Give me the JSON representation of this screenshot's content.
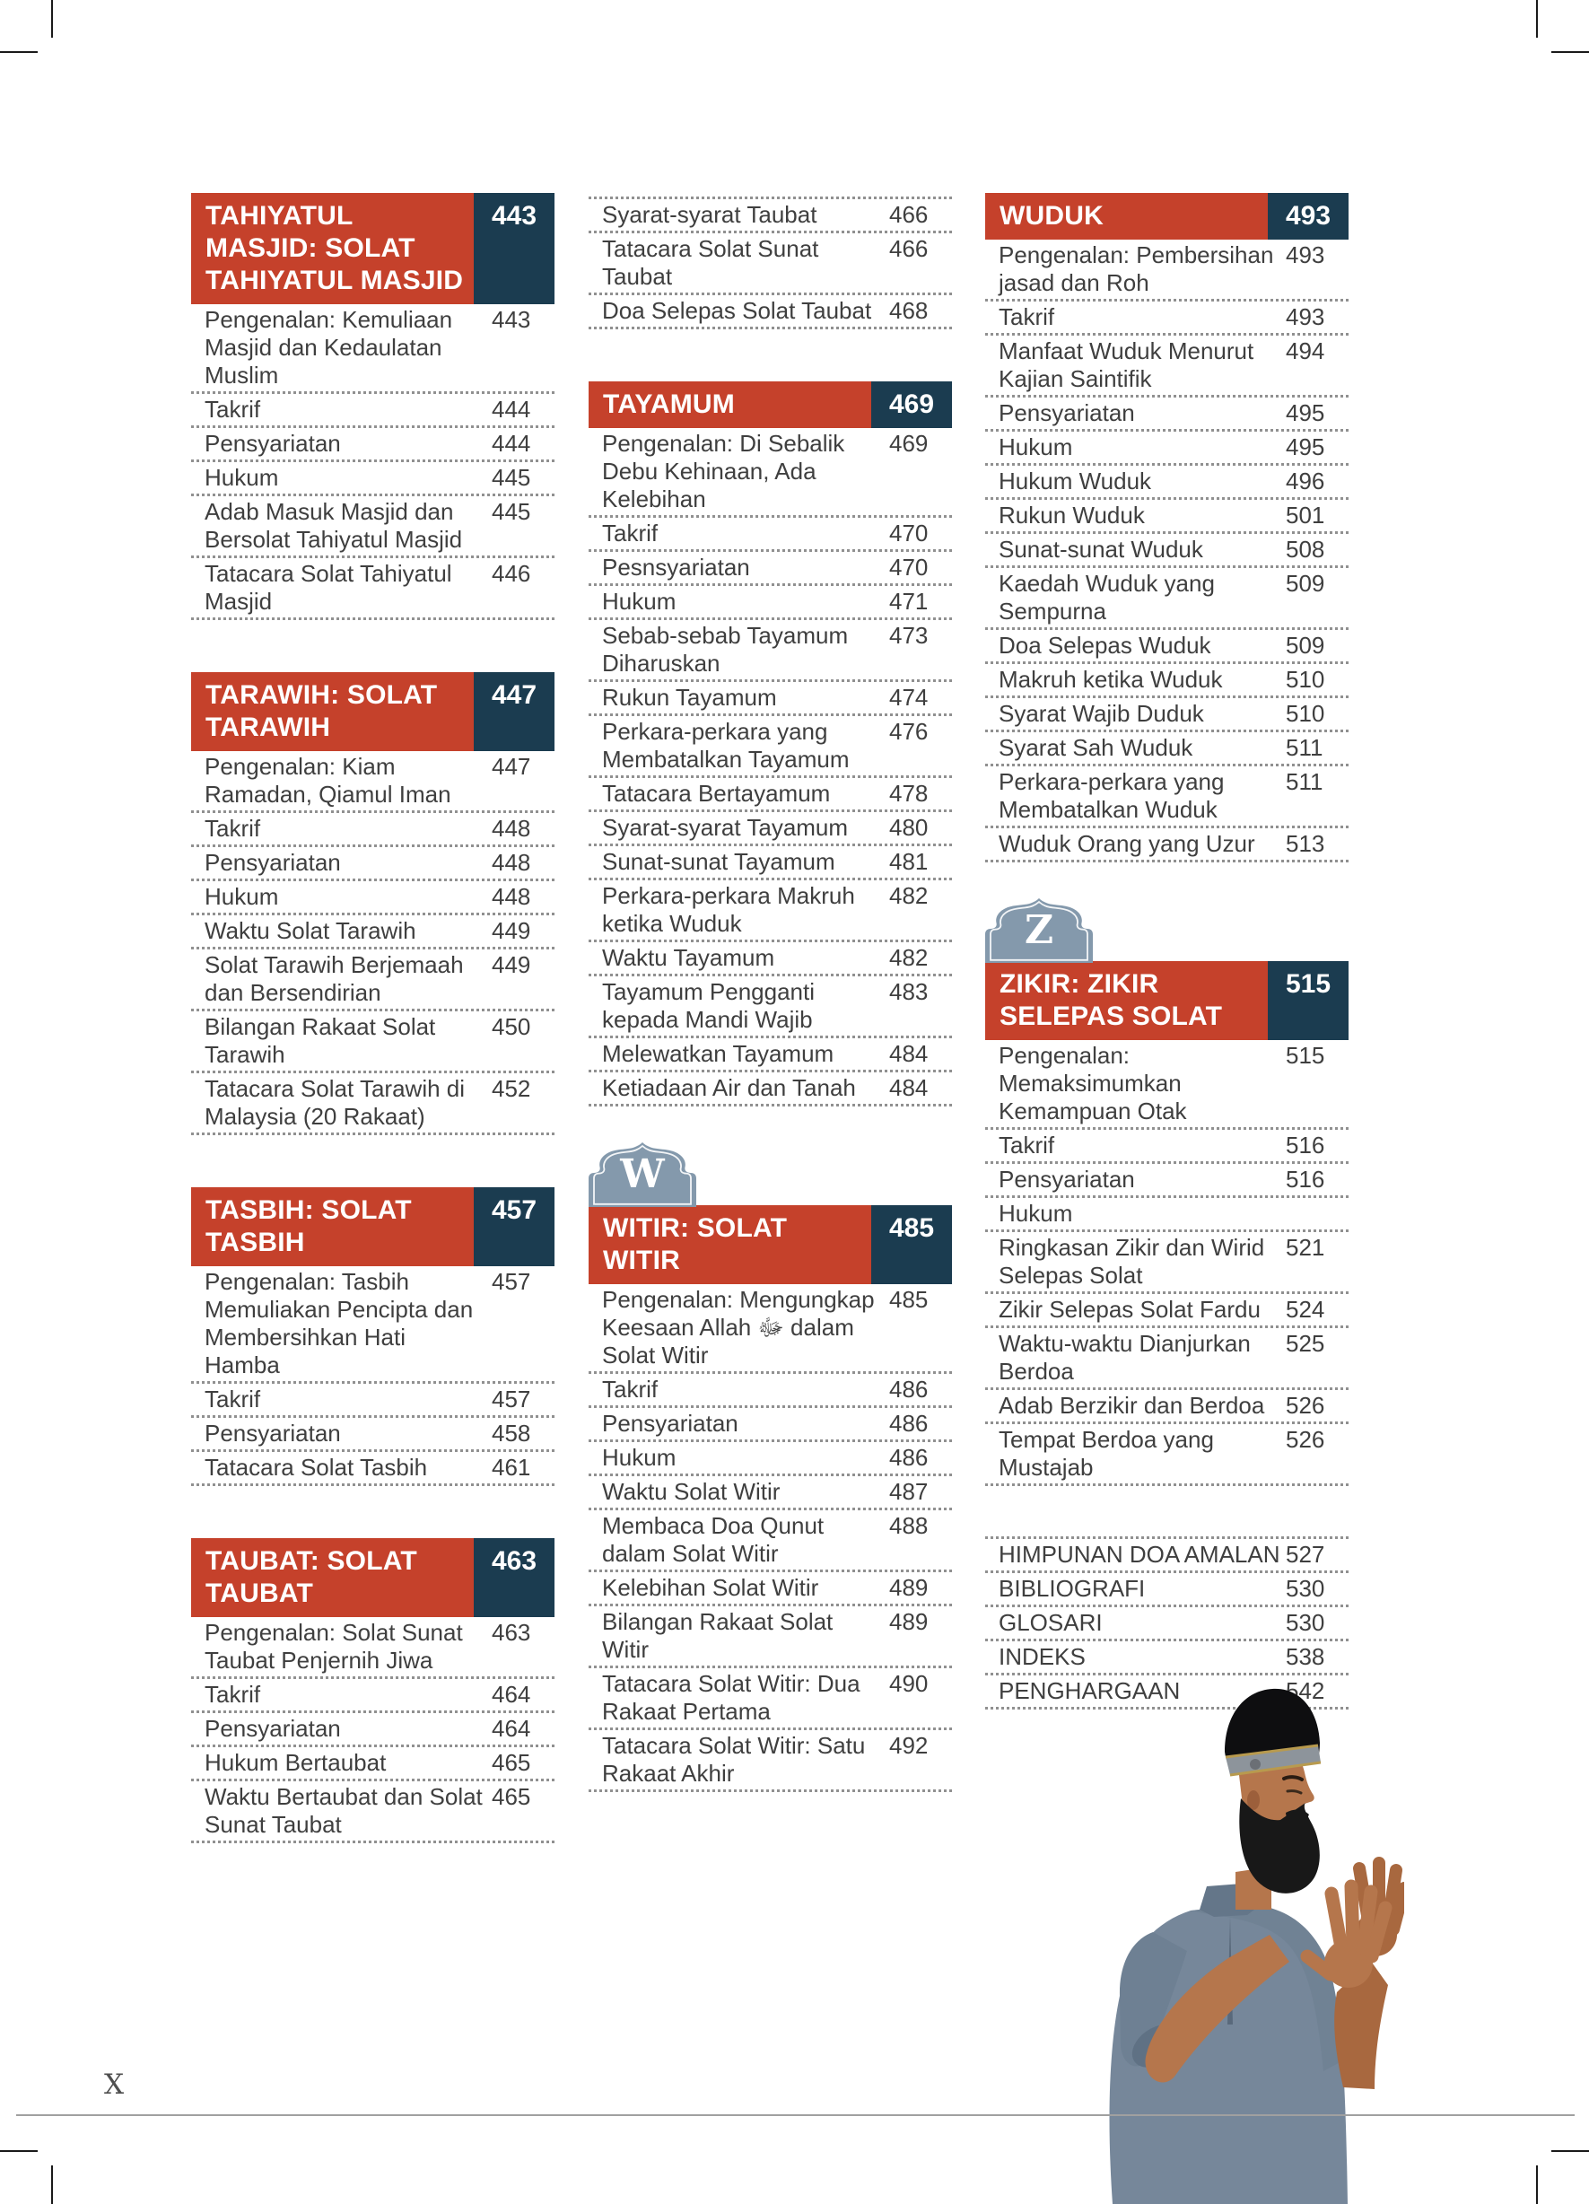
{
  "meta": {
    "folio": "X"
  },
  "colors": {
    "accent_red": "#c5412b",
    "page_number_navy": "#1b3c50",
    "badge_blue": "#8499ac",
    "body_text": "#3f3f3f",
    "dotted_line": "#909090"
  },
  "photo": {
    "description": "Man wearing black kufi cap with decorative band, beard, grey-blue shirt, hands raised in prayer (dua)"
  },
  "columns": [
    {
      "blocks": [
        {
          "kind": "section",
          "title": "TAHIYATUL MASJID: SOLAT TAHIYATUL MASJID",
          "page": "443",
          "items": [
            {
              "t": "Pengenalan: Kemuliaan Masjid dan Kedaulatan Muslim",
              "p": "443"
            },
            {
              "t": "Takrif",
              "p": "444"
            },
            {
              "t": "Pensyariatan",
              "p": "444"
            },
            {
              "t": "Hukum",
              "p": "445"
            },
            {
              "t": "Adab Masuk Masjid dan Bersolat Tahiyatul Masjid",
              "p": "445"
            },
            {
              "t": "Tatacara Solat Tahiyatul Masjid",
              "p": "446"
            }
          ]
        },
        {
          "kind": "section",
          "title": "TARAWIH: SOLAT TARAWIH",
          "page": "447",
          "items": [
            {
              "t": "Pengenalan: Kiam Ramadan, Qiamul Iman",
              "p": "447"
            },
            {
              "t": "Takrif",
              "p": "448"
            },
            {
              "t": "Pensyariatan",
              "p": "448"
            },
            {
              "t": "Hukum",
              "p": "448"
            },
            {
              "t": "Waktu Solat Tarawih",
              "p": "449"
            },
            {
              "t": "Solat Tarawih Berjemaah dan Bersendirian",
              "p": "449"
            },
            {
              "t": "Bilangan Rakaat Solat Tarawih",
              "p": "450"
            },
            {
              "t": "Tatacara Solat Tarawih di Malaysia (20 Rakaat)",
              "p": "452"
            }
          ]
        },
        {
          "kind": "section",
          "title": "TASBIH: SOLAT TASBIH",
          "page": "457",
          "items": [
            {
              "t": "Pengenalan: Tasbih Memuliakan Pencipta dan Membersihkan Hati Hamba",
              "p": "457"
            },
            {
              "t": "Takrif",
              "p": "457"
            },
            {
              "t": "Pensyariatan",
              "p": "458"
            },
            {
              "t": "Tatacara Solat Tasbih",
              "p": "461"
            }
          ]
        },
        {
          "kind": "section",
          "title": "TAUBAT: SOLAT TAUBAT",
          "page": "463",
          "items": [
            {
              "t": "Pengenalan: Solat Sunat Taubat Penjernih Jiwa",
              "p": "463"
            },
            {
              "t": "Takrif",
              "p": "464"
            },
            {
              "t": "Pensyariatan",
              "p": "464"
            },
            {
              "t": "Hukum Bertaubat",
              "p": "465"
            },
            {
              "t": "Waktu Bertaubat dan Solat Sunat Taubat",
              "p": "465"
            }
          ]
        }
      ]
    },
    {
      "blocks": [
        {
          "kind": "continuation",
          "items": [
            {
              "t": "Syarat-syarat Taubat",
              "p": "466"
            },
            {
              "t": "Tatacara Solat Sunat Taubat",
              "p": "466"
            },
            {
              "t": "Doa Selepas Solat Taubat",
              "p": "468"
            }
          ]
        },
        {
          "kind": "section",
          "title": "TAYAMUM",
          "page": "469",
          "items": [
            {
              "t": "Pengenalan: Di Sebalik Debu Kehinaan, Ada Kelebihan",
              "p": "469"
            },
            {
              "t": "Takrif",
              "p": "470"
            },
            {
              "t": "Pesnsyariatan",
              "p": "470"
            },
            {
              "t": "Hukum",
              "p": "471"
            },
            {
              "t": "Sebab-sebab Tayamum Diharuskan",
              "p": "473"
            },
            {
              "t": "Rukun Tayamum",
              "p": "474"
            },
            {
              "t": "Perkara-perkara yang Membatalkan Tayamum",
              "p": "476"
            },
            {
              "t": "Tatacara Bertayamum",
              "p": "478"
            },
            {
              "t": "Syarat-syarat Tayamum",
              "p": "480"
            },
            {
              "t": "Sunat-sunat Tayamum",
              "p": "481"
            },
            {
              "t": "Perkara-perkara Makruh ketika Wuduk",
              "p": "482"
            },
            {
              "t": "Waktu Tayamum",
              "p": "482"
            },
            {
              "t": "Tayamum Pengganti kepada Mandi Wajib",
              "p": "483"
            },
            {
              "t": "Melewatkan Tayamum",
              "p": "484"
            },
            {
              "t": "Ketiadaan Air dan Tanah",
              "p": "484"
            }
          ]
        },
        {
          "kind": "section",
          "badge": "W",
          "title": "WITIR: SOLAT WITIR",
          "page": "485",
          "items": [
            {
              "t": "Pengenalan: Mengungkap Keesaan Allah ﷻ dalam Solat Witir",
              "p": "485"
            },
            {
              "t": "Takrif",
              "p": "486"
            },
            {
              "t": "Pensyariatan",
              "p": "486"
            },
            {
              "t": "Hukum",
              "p": "486"
            },
            {
              "t": "Waktu Solat Witir",
              "p": "487"
            },
            {
              "t": "Membaca Doa Qunut dalam Solat Witir",
              "p": "488"
            },
            {
              "t": "Kelebihan Solat Witir",
              "p": "489"
            },
            {
              "t": "Bilangan Rakaat Solat Witir",
              "p": "489"
            },
            {
              "t": "Tatacara Solat Witir: Dua Rakaat Pertama",
              "p": "490"
            },
            {
              "t": "Tatacara Solat Witir: Satu Rakaat Akhir",
              "p": "492"
            }
          ]
        }
      ]
    },
    {
      "blocks": [
        {
          "kind": "section",
          "title": "WUDUK",
          "page": "493",
          "items": [
            {
              "t": "Pengenalan: Pembersihan jasad dan Roh",
              "p": "493"
            },
            {
              "t": "Takrif",
              "p": "493"
            },
            {
              "t": "Manfaat Wuduk Menurut Kajian Saintifik",
              "p": "494"
            },
            {
              "t": "Pensyariatan",
              "p": "495"
            },
            {
              "t": "Hukum",
              "p": "495"
            },
            {
              "t": "Hukum Wuduk",
              "p": "496"
            },
            {
              "t": "Rukun Wuduk",
              "p": "501"
            },
            {
              "t": "Sunat-sunat Wuduk",
              "p": "508"
            },
            {
              "t": "Kaedah Wuduk yang Sempurna",
              "p": "509"
            },
            {
              "t": "Doa Selepas Wuduk",
              "p": "509"
            },
            {
              "t": "Makruh ketika Wuduk",
              "p": "510"
            },
            {
              "t": "Syarat Wajib Duduk",
              "p": "510"
            },
            {
              "t": "Syarat Sah Wuduk",
              "p": "511"
            },
            {
              "t": "Perkara-perkara yang Membatalkan Wuduk",
              "p": "511"
            },
            {
              "t": "Wuduk Orang yang Uzur",
              "p": "513"
            }
          ]
        },
        {
          "kind": "section",
          "badge": "Z",
          "title": "ZIKIR: ZIKIR SELEPAS SOLAT",
          "page": "515",
          "items": [
            {
              "t": "Pengenalan: Memaksimumkan Kemampuan Otak",
              "p": "515"
            },
            {
              "t": "Takrif",
              "p": "516"
            },
            {
              "t": "Pensyariatan",
              "p": "516"
            },
            {
              "t": "Hukum",
              "p": ""
            },
            {
              "t": "Ringkasan Zikir dan Wirid Selepas Solat",
              "p": "521"
            },
            {
              "t": "Zikir Selepas Solat Fardu",
              "p": "524"
            },
            {
              "t": "Waktu-waktu Dianjurkan Berdoa",
              "p": "525"
            },
            {
              "t": "Adab Berzikir dan Berdoa",
              "p": "526"
            },
            {
              "t": "Tempat Berdoa yang Mustajab",
              "p": "526"
            }
          ]
        },
        {
          "kind": "backmatter",
          "items": [
            {
              "t": "HIMPUNAN DOA AMALAN",
              "p": "527"
            },
            {
              "t": "BIBLIOGRAFI",
              "p": "530"
            },
            {
              "t": "GLOSARI",
              "p": "530"
            },
            {
              "t": "INDEKS",
              "p": "538"
            },
            {
              "t": "PENGHARGAAN",
              "p": "542"
            }
          ]
        }
      ]
    }
  ]
}
